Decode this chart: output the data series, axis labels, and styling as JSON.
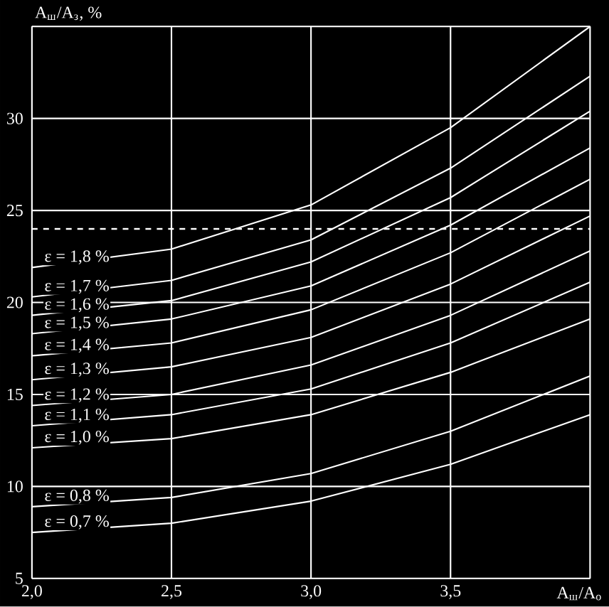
{
  "chart_data": {
    "type": "line",
    "xlabel": "A$_{ш}$/A$_{о}$",
    "ylabel": "A$_{ш}$/A$_{з}$, %",
    "x": [
      2.0,
      2.5,
      3.0,
      3.5,
      4.0
    ],
    "series": [
      {
        "name": "ε = 1,8 %",
        "color": "#ffffff",
        "values": [
          21.9,
          22.9,
          25.3,
          29.5,
          35.0
        ]
      },
      {
        "name": "ε = 1,7 %",
        "color": "#ffffff",
        "values": [
          20.3,
          21.2,
          23.4,
          27.3,
          32.3
        ]
      },
      {
        "name": "ε = 1,6 %",
        "color": "#ffffff",
        "values": [
          19.3,
          20.1,
          22.2,
          25.7,
          30.4
        ]
      },
      {
        "name": "ε = 1,5 %",
        "color": "#ffffff",
        "values": [
          18.3,
          19.1,
          20.9,
          24.2,
          28.4
        ]
      },
      {
        "name": "ε = 1,4 %",
        "color": "#ffffff",
        "values": [
          17.1,
          17.8,
          19.6,
          22.7,
          26.7
        ]
      },
      {
        "name": "ε = 1,3 %",
        "color": "#ffffff",
        "values": [
          15.8,
          16.5,
          18.1,
          21.0,
          24.7
        ]
      },
      {
        "name": "ε = 1,2 %",
        "color": "#ffffff",
        "values": [
          14.4,
          15.0,
          16.6,
          19.3,
          22.8
        ]
      },
      {
        "name": "ε = 1,1 %",
        "color": "#ffffff",
        "values": [
          13.3,
          13.9,
          15.3,
          17.8,
          21.1
        ]
      },
      {
        "name": "ε = 1,0 %",
        "color": "#ffffff",
        "values": [
          12.1,
          12.6,
          13.9,
          16.2,
          19.1
        ]
      },
      {
        "name": "ε = 0,8 %",
        "color": "#ffffff",
        "values": [
          8.9,
          9.4,
          10.7,
          13.0,
          16.0
        ]
      },
      {
        "name": "ε = 0,7 %",
        "color": "#ffffff",
        "values": [
          7.5,
          8.0,
          9.2,
          11.2,
          13.9
        ]
      }
    ],
    "xlim": [
      2.0,
      4.0
    ],
    "ylim": [
      5,
      35
    ],
    "xticks": [
      {
        "value": 2.0,
        "label": "2,0"
      },
      {
        "value": 2.5,
        "label": "2,5"
      },
      {
        "value": 3.0,
        "label": "3,0"
      },
      {
        "value": 3.5,
        "label": "3,5"
      },
      {
        "value": 4.0,
        "label": null
      }
    ],
    "yticks": [
      5,
      10,
      15,
      20,
      25,
      30,
      {
        "value": 35,
        "label": null
      }
    ],
    "grid": true,
    "marker": "none",
    "line_style": "solid",
    "ref_lines": [
      {
        "axis": "y",
        "value": 24,
        "line_style": "dashed",
        "color": "#ffffff"
      }
    ]
  }
}
